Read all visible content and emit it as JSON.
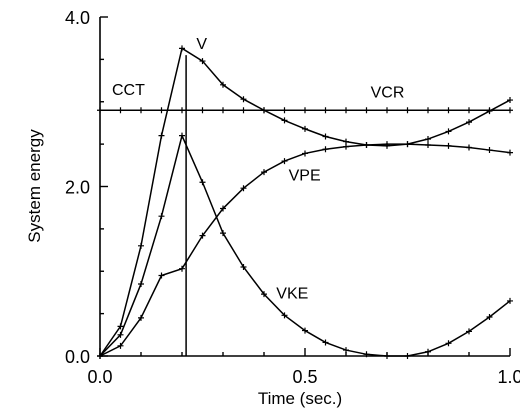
{
  "chart_data": {
    "type": "line",
    "xlabel": "Time (sec.)",
    "ylabel": "System energy",
    "xlim": [
      0,
      1.0
    ],
    "ylim": [
      0,
      4.0
    ],
    "x_ticks": [
      "0.0",
      "0.5",
      "1.0"
    ],
    "y_ticks": [
      "0.0",
      "2.0",
      "4.0"
    ],
    "grid": false,
    "cct_label": "CCT",
    "cct_x": 0.21,
    "series": [
      {
        "name": "V",
        "x": [
          0.0,
          0.05,
          0.1,
          0.15,
          0.2,
          0.25,
          0.3,
          0.35,
          0.4,
          0.45,
          0.5,
          0.55,
          0.6,
          0.65,
          0.7,
          0.75,
          0.8,
          0.85,
          0.9,
          0.95,
          1.0
        ],
        "y": [
          0.0,
          0.35,
          1.3,
          2.6,
          3.63,
          3.48,
          3.2,
          3.03,
          2.9,
          2.78,
          2.68,
          2.59,
          2.53,
          2.49,
          2.48,
          2.5,
          2.56,
          2.65,
          2.76,
          2.89,
          3.02
        ]
      },
      {
        "name": "VCR",
        "x": [
          0.0,
          0.05,
          0.1,
          0.15,
          0.2,
          0.25,
          0.3,
          0.35,
          0.4,
          0.45,
          0.5,
          0.55,
          0.6,
          0.65,
          0.7,
          0.75,
          0.8,
          0.85,
          0.9,
          0.95,
          1.0
        ],
        "y": [
          2.9,
          2.9,
          2.9,
          2.9,
          2.9,
          2.9,
          2.9,
          2.9,
          2.9,
          2.9,
          2.9,
          2.9,
          2.9,
          2.9,
          2.9,
          2.9,
          2.9,
          2.9,
          2.9,
          2.9,
          2.9
        ]
      },
      {
        "name": "VPE",
        "x": [
          0.0,
          0.05,
          0.1,
          0.15,
          0.2,
          0.25,
          0.3,
          0.35,
          0.4,
          0.45,
          0.5,
          0.55,
          0.6,
          0.65,
          0.7,
          0.75,
          0.8,
          0.85,
          0.9,
          0.95,
          1.0
        ],
        "y": [
          0.0,
          0.12,
          0.45,
          0.95,
          1.03,
          1.42,
          1.74,
          1.98,
          2.17,
          2.3,
          2.39,
          2.44,
          2.47,
          2.49,
          2.5,
          2.5,
          2.49,
          2.48,
          2.46,
          2.43,
          2.4
        ]
      },
      {
        "name": "VKE",
        "x": [
          0.0,
          0.05,
          0.1,
          0.15,
          0.2,
          0.25,
          0.3,
          0.35,
          0.4,
          0.45,
          0.5,
          0.55,
          0.6,
          0.65,
          0.7,
          0.75,
          0.8,
          0.85,
          0.9,
          0.95,
          1.0
        ],
        "y": [
          0.0,
          0.25,
          0.85,
          1.65,
          2.6,
          2.05,
          1.45,
          1.05,
          0.73,
          0.48,
          0.3,
          0.16,
          0.07,
          0.02,
          0.0,
          0.0,
          0.05,
          0.15,
          0.29,
          0.46,
          0.65
        ]
      }
    ]
  }
}
